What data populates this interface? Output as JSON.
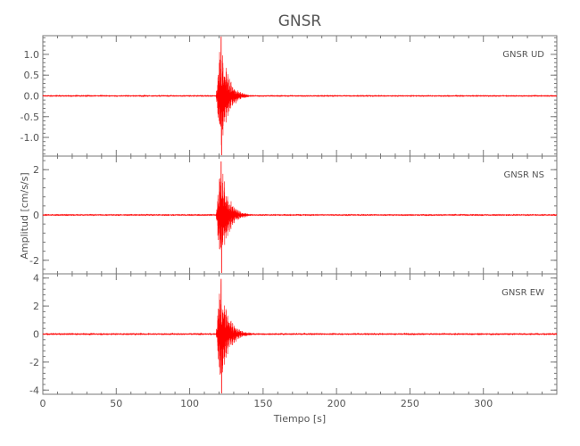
{
  "chart_data": {
    "type": "line",
    "title": "GNSR",
    "xlabel": "Tiempo [s]",
    "ylabel": "Amplitud [cm/s/s]",
    "xlim": [
      0,
      350
    ],
    "x_ticks": [
      "0",
      "50",
      "100",
      "150",
      "200",
      "250",
      "300"
    ],
    "series_color": "#ff0000",
    "panels": [
      {
        "label": "GNSR   UD",
        "ylim": [
          -1.45,
          1.45
        ],
        "y_ticks": [
          "1.0",
          "0.5",
          "0.0",
          "-0.5",
          "-1.0"
        ],
        "y_tick_values": [
          1.0,
          0.5,
          0.0,
          -0.5,
          -1.0
        ],
        "noise_level": 0.015,
        "event_onset": 118,
        "peak_time": 121,
        "peak_positive": 1.45,
        "peak_negative": -1.45,
        "decay_end": 150
      },
      {
        "label": "GNSR   NS",
        "ylim": [
          -2.6,
          2.6
        ],
        "y_ticks": [
          "2",
          "0",
          "-2"
        ],
        "y_tick_values": [
          2,
          0,
          -2
        ],
        "noise_level": 0.02,
        "event_onset": 118,
        "peak_time": 121,
        "peak_positive": 2.4,
        "peak_negative": -2.6,
        "decay_end": 150
      },
      {
        "label": "GNSR   EW",
        "ylim": [
          -4.3,
          4.3
        ],
        "y_ticks": [
          "4",
          "2",
          "0",
          "-2",
          "-4"
        ],
        "y_tick_values": [
          4,
          2,
          0,
          -2,
          -4
        ],
        "noise_level": 0.03,
        "event_onset": 118,
        "peak_time": 121,
        "peak_positive": 4.0,
        "peak_negative": -4.3,
        "decay_end": 150
      }
    ]
  }
}
